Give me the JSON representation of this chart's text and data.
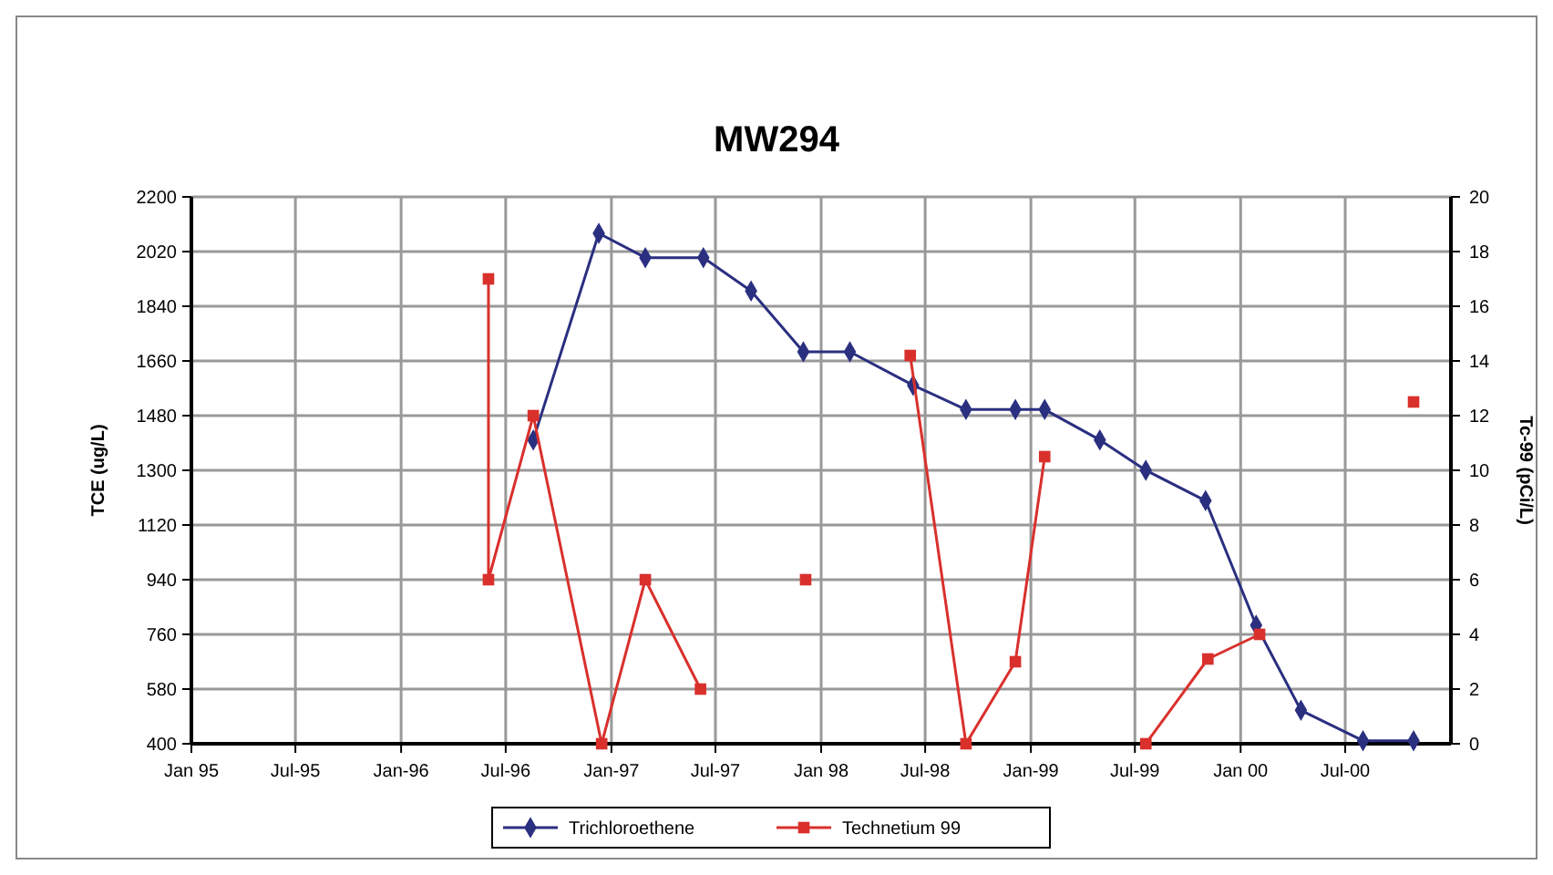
{
  "chart_data": {
    "type": "line",
    "title": "MW294",
    "ylabel": "TCE (ug/L)",
    "y2label": "Tc-99 (pCi/L)",
    "xlim": [
      "1995-01-01",
      "2001-01-01"
    ],
    "xticks": [
      {
        "value": "1995-01-01",
        "label": "Jan 95"
      },
      {
        "value": "1995-07-01",
        "label": "Jul-95"
      },
      {
        "value": "1996-01-01",
        "label": "Jan-96"
      },
      {
        "value": "1996-07-01",
        "label": "Jul-96"
      },
      {
        "value": "1997-01-01",
        "label": "Jan-97"
      },
      {
        "value": "1997-07-01",
        "label": "Jul-97"
      },
      {
        "value": "1998-01-01",
        "label": "Jan 98"
      },
      {
        "value": "1998-07-01",
        "label": "Jul-98"
      },
      {
        "value": "1999-01-01",
        "label": "Jan-99"
      },
      {
        "value": "1999-07-01",
        "label": "Jul-99"
      },
      {
        "value": "2000-01-01",
        "label": "Jan 00"
      },
      {
        "value": "2000-07-01",
        "label": "Jul-00"
      }
    ],
    "ylim": [
      400,
      2200
    ],
    "yticks": [
      400,
      580,
      760,
      940,
      1120,
      1300,
      1480,
      1660,
      1840,
      2020,
      2200
    ],
    "y2lim": [
      0,
      20
    ],
    "y2ticks": [
      0,
      2,
      4,
      6,
      8,
      10,
      12,
      14,
      16,
      18,
      20
    ],
    "grid": true,
    "legend": "bottom",
    "line_style": "solid",
    "series": [
      {
        "name": "Trichloroethene",
        "color": "#2a2f80",
        "marker": "diamond",
        "x": [
          "1996-08-18",
          "1996-12-10",
          "1997-03-01",
          "1997-06-10",
          "1997-09-01",
          "1997-12-01",
          "1998-02-20",
          "1998-06-10",
          "1998-09-10",
          "1998-12-05",
          "1999-01-25",
          "1999-05-01",
          "1999-07-20",
          "1999-11-01",
          "2000-01-28",
          "2000-04-15",
          "2000-08-01",
          "2000-10-28"
        ],
        "values": [
          1400,
          2080,
          2000,
          2000,
          1890,
          1690,
          1690,
          1580,
          1500,
          1500,
          1500,
          1400,
          1300,
          1200,
          790,
          510,
          410,
          410
        ]
      },
      {
        "name": "Technetium 99",
        "color": "#d9302c",
        "marker": "square",
        "axis": "y2",
        "x": [
          "1996-06-01",
          "1996-06-01",
          "1996-08-18",
          "1996-12-15",
          "1997-03-01",
          "1997-06-05",
          "1997-08-28",
          "1997-12-05",
          "1998-02-20",
          "1998-06-05",
          "1998-09-10",
          "1998-12-05",
          "1999-01-25",
          "1999-05-10",
          "1999-07-20",
          "1999-11-05",
          "2000-02-03",
          "2000-06-01",
          "2000-10-28"
        ],
        "values": [
          17,
          6,
          12,
          0,
          6,
          2,
          null,
          6,
          null,
          14.2,
          0,
          3,
          10.5,
          null,
          0,
          3.1,
          4,
          null,
          12.5
        ]
      }
    ]
  }
}
